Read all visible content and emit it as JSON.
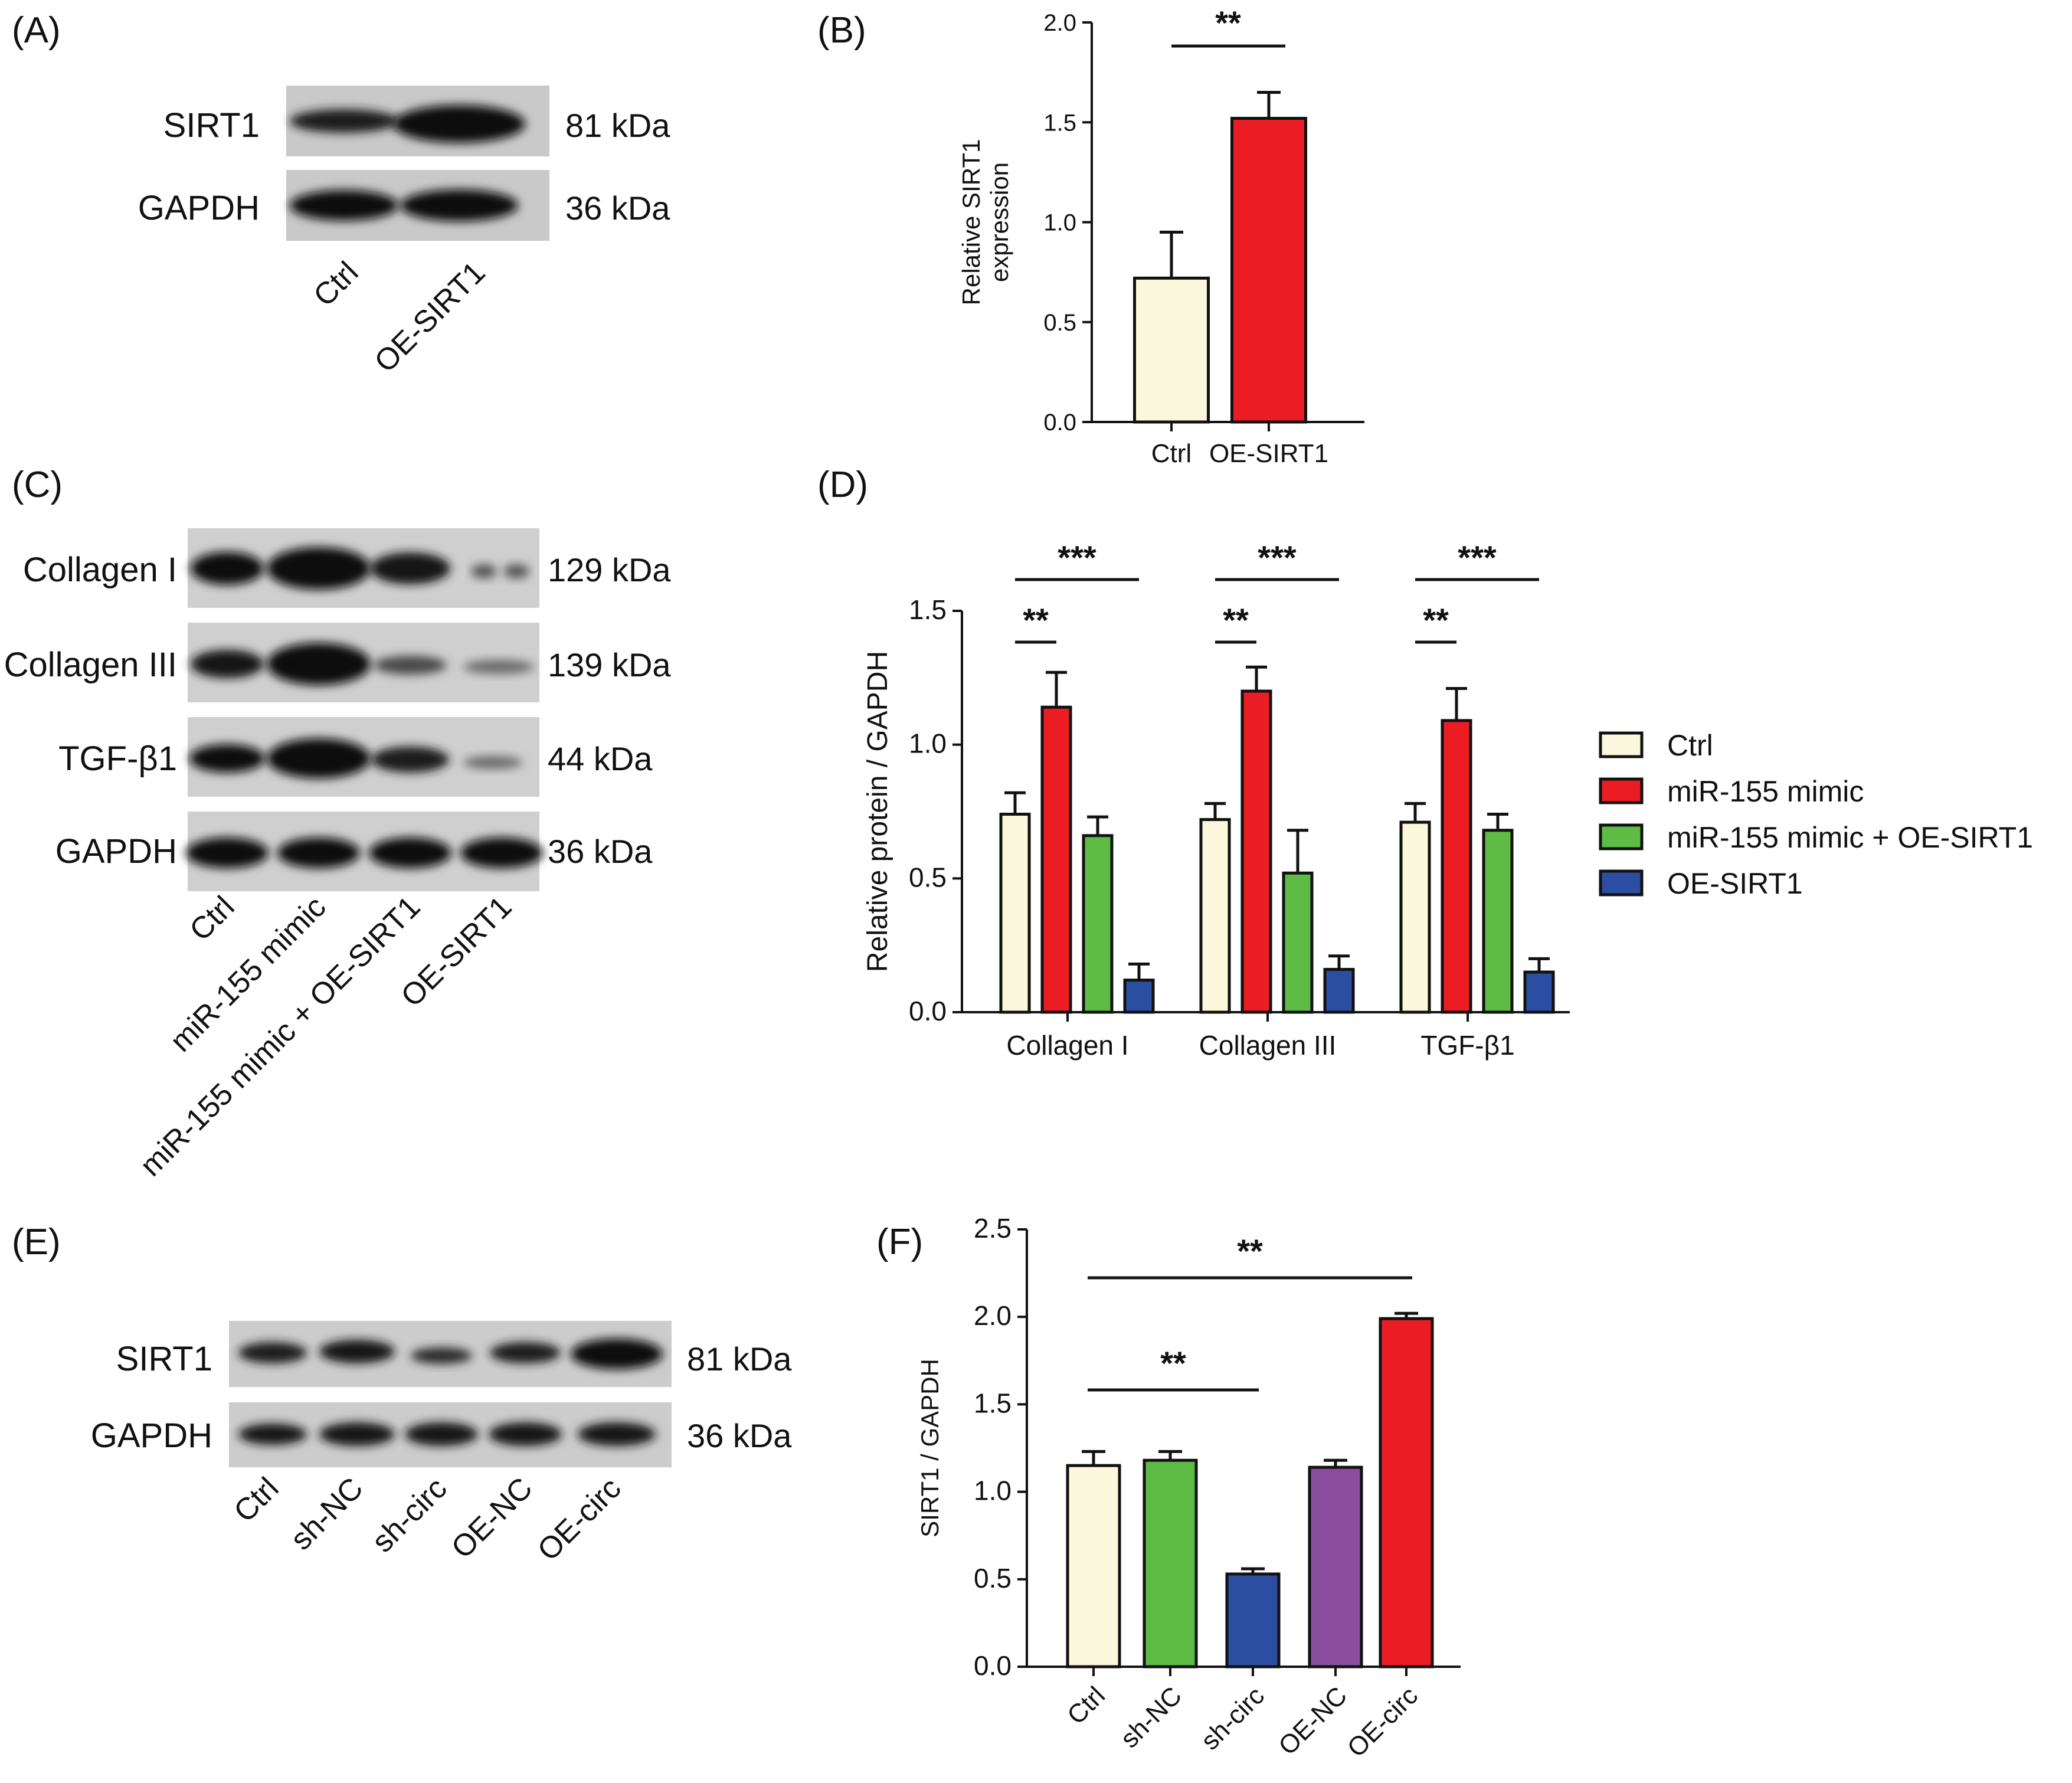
{
  "panels": {
    "A": {
      "label": "(A)",
      "blots": [
        {
          "protein": "SIRT1",
          "kda": "81 kDa"
        },
        {
          "protein": "GAPDH",
          "kda": "36 kDa"
        }
      ],
      "lanes": [
        "Ctrl",
        "OE-SIRT1"
      ]
    },
    "B": {
      "label": "(B)"
    },
    "C": {
      "label": "(C)",
      "blots": [
        {
          "protein": "Collagen  I",
          "kda": "129 kDa"
        },
        {
          "protein": "Collagen  III",
          "kda": "139 kDa"
        },
        {
          "protein": "TGF-β1",
          "kda": "44 kDa"
        },
        {
          "protein": "GAPDH",
          "kda": "36 kDa"
        }
      ],
      "lanes": [
        "Ctrl",
        "miR-155 mimic",
        "miR-155 mimic + OE-SIRT1",
        "OE-SIRT1"
      ]
    },
    "D": {
      "label": "(D)"
    },
    "E": {
      "label": "(E)",
      "blots": [
        {
          "protein": "SIRT1",
          "kda": "81 kDa"
        },
        {
          "protein": "GAPDH",
          "kda": "36 kDa"
        }
      ],
      "lanes": [
        "Ctrl",
        "sh-NC",
        "sh-circ",
        "OE-NC",
        "OE-circ"
      ]
    },
    "F": {
      "label": "(F)"
    }
  },
  "colors": {
    "ctrl": "#FBF7DC",
    "red": "#EC1C24",
    "green": "#5DBB46",
    "blue": "#2B4EA2",
    "purple": "#8B4E9F"
  },
  "chart_data": [
    {
      "id": "B",
      "type": "bar",
      "title": "",
      "categories": [
        "Ctrl",
        "OE-SIRT1"
      ],
      "values": [
        0.72,
        1.52
      ],
      "errors": [
        0.23,
        0.13
      ],
      "colors": [
        "#FBF7DC",
        "#EC1C24"
      ],
      "xlabel": "",
      "ylabel": "Relative SIRT1 expression",
      "ylabel_lines": [
        "Relative SIRT1",
        "expression"
      ],
      "ylim": [
        0,
        2.0
      ],
      "yticks": [
        "0.0",
        "0.5",
        "1.0",
        "1.5",
        "2.0"
      ],
      "significance": [
        {
          "from": 0,
          "to": 1,
          "label": "**"
        }
      ]
    },
    {
      "id": "D",
      "type": "bar",
      "title": "",
      "categories": [
        "Collagen I",
        "Collagen III",
        "TGF-β1"
      ],
      "series": [
        {
          "name": "Ctrl",
          "values": [
            0.74,
            0.72,
            0.71
          ],
          "errors": [
            0.08,
            0.06,
            0.07
          ],
          "color": "#FBF7DC"
        },
        {
          "name": "miR-155 mimic",
          "values": [
            1.14,
            1.2,
            1.09
          ],
          "errors": [
            0.13,
            0.09,
            0.12
          ],
          "color": "#EC1C24"
        },
        {
          "name": "miR-155 mimic + OE-SIRT1",
          "values": [
            0.66,
            0.52,
            0.68
          ],
          "errors": [
            0.07,
            0.16,
            0.06
          ],
          "color": "#5DBB46"
        },
        {
          "name": "OE-SIRT1",
          "values": [
            0.12,
            0.16,
            0.15
          ],
          "errors": [
            0.06,
            0.05,
            0.05
          ],
          "color": "#2B4EA2"
        }
      ],
      "xlabel": "",
      "ylabel": "Relative protein / GAPDH",
      "ylim": [
        0,
        1.5
      ],
      "yticks": [
        "0.0",
        "0.5",
        "1.0",
        "1.5"
      ],
      "legend_position": "right",
      "significance": [
        {
          "group": 0,
          "from": 0,
          "to": 3,
          "label": "***",
          "level": 2
        },
        {
          "group": 0,
          "from": 0,
          "to": 1,
          "label": "**",
          "level": 1
        },
        {
          "group": 1,
          "from": 0,
          "to": 3,
          "label": "***",
          "level": 2
        },
        {
          "group": 1,
          "from": 0,
          "to": 1,
          "label": "**",
          "level": 1
        },
        {
          "group": 2,
          "from": 0,
          "to": 3,
          "label": "***",
          "level": 2
        },
        {
          "group": 2,
          "from": 0,
          "to": 1,
          "label": "**",
          "level": 1
        }
      ]
    },
    {
      "id": "F",
      "type": "bar",
      "title": "",
      "categories": [
        "Ctrl",
        "sh-NC",
        "sh-circ",
        "OE-NC",
        "OE-circ"
      ],
      "values": [
        1.15,
        1.18,
        0.53,
        1.14,
        1.99
      ],
      "errors": [
        0.08,
        0.05,
        0.03,
        0.04,
        0.03
      ],
      "colors": [
        "#FBF7DC",
        "#5DBB46",
        "#2B4EA2",
        "#8B4E9F",
        "#EC1C24"
      ],
      "xlabel": "",
      "ylabel": "SIRT1 / GAPDH",
      "ylim": [
        0,
        2.5
      ],
      "yticks": [
        "0.0",
        "0.5",
        "1.0",
        "1.5",
        "2.0",
        "2.5"
      ],
      "significance": [
        {
          "from": 0,
          "to": 4,
          "label": "**",
          "level": 2
        },
        {
          "from": 0,
          "to": 2,
          "label": "**",
          "level": 1
        }
      ]
    }
  ]
}
